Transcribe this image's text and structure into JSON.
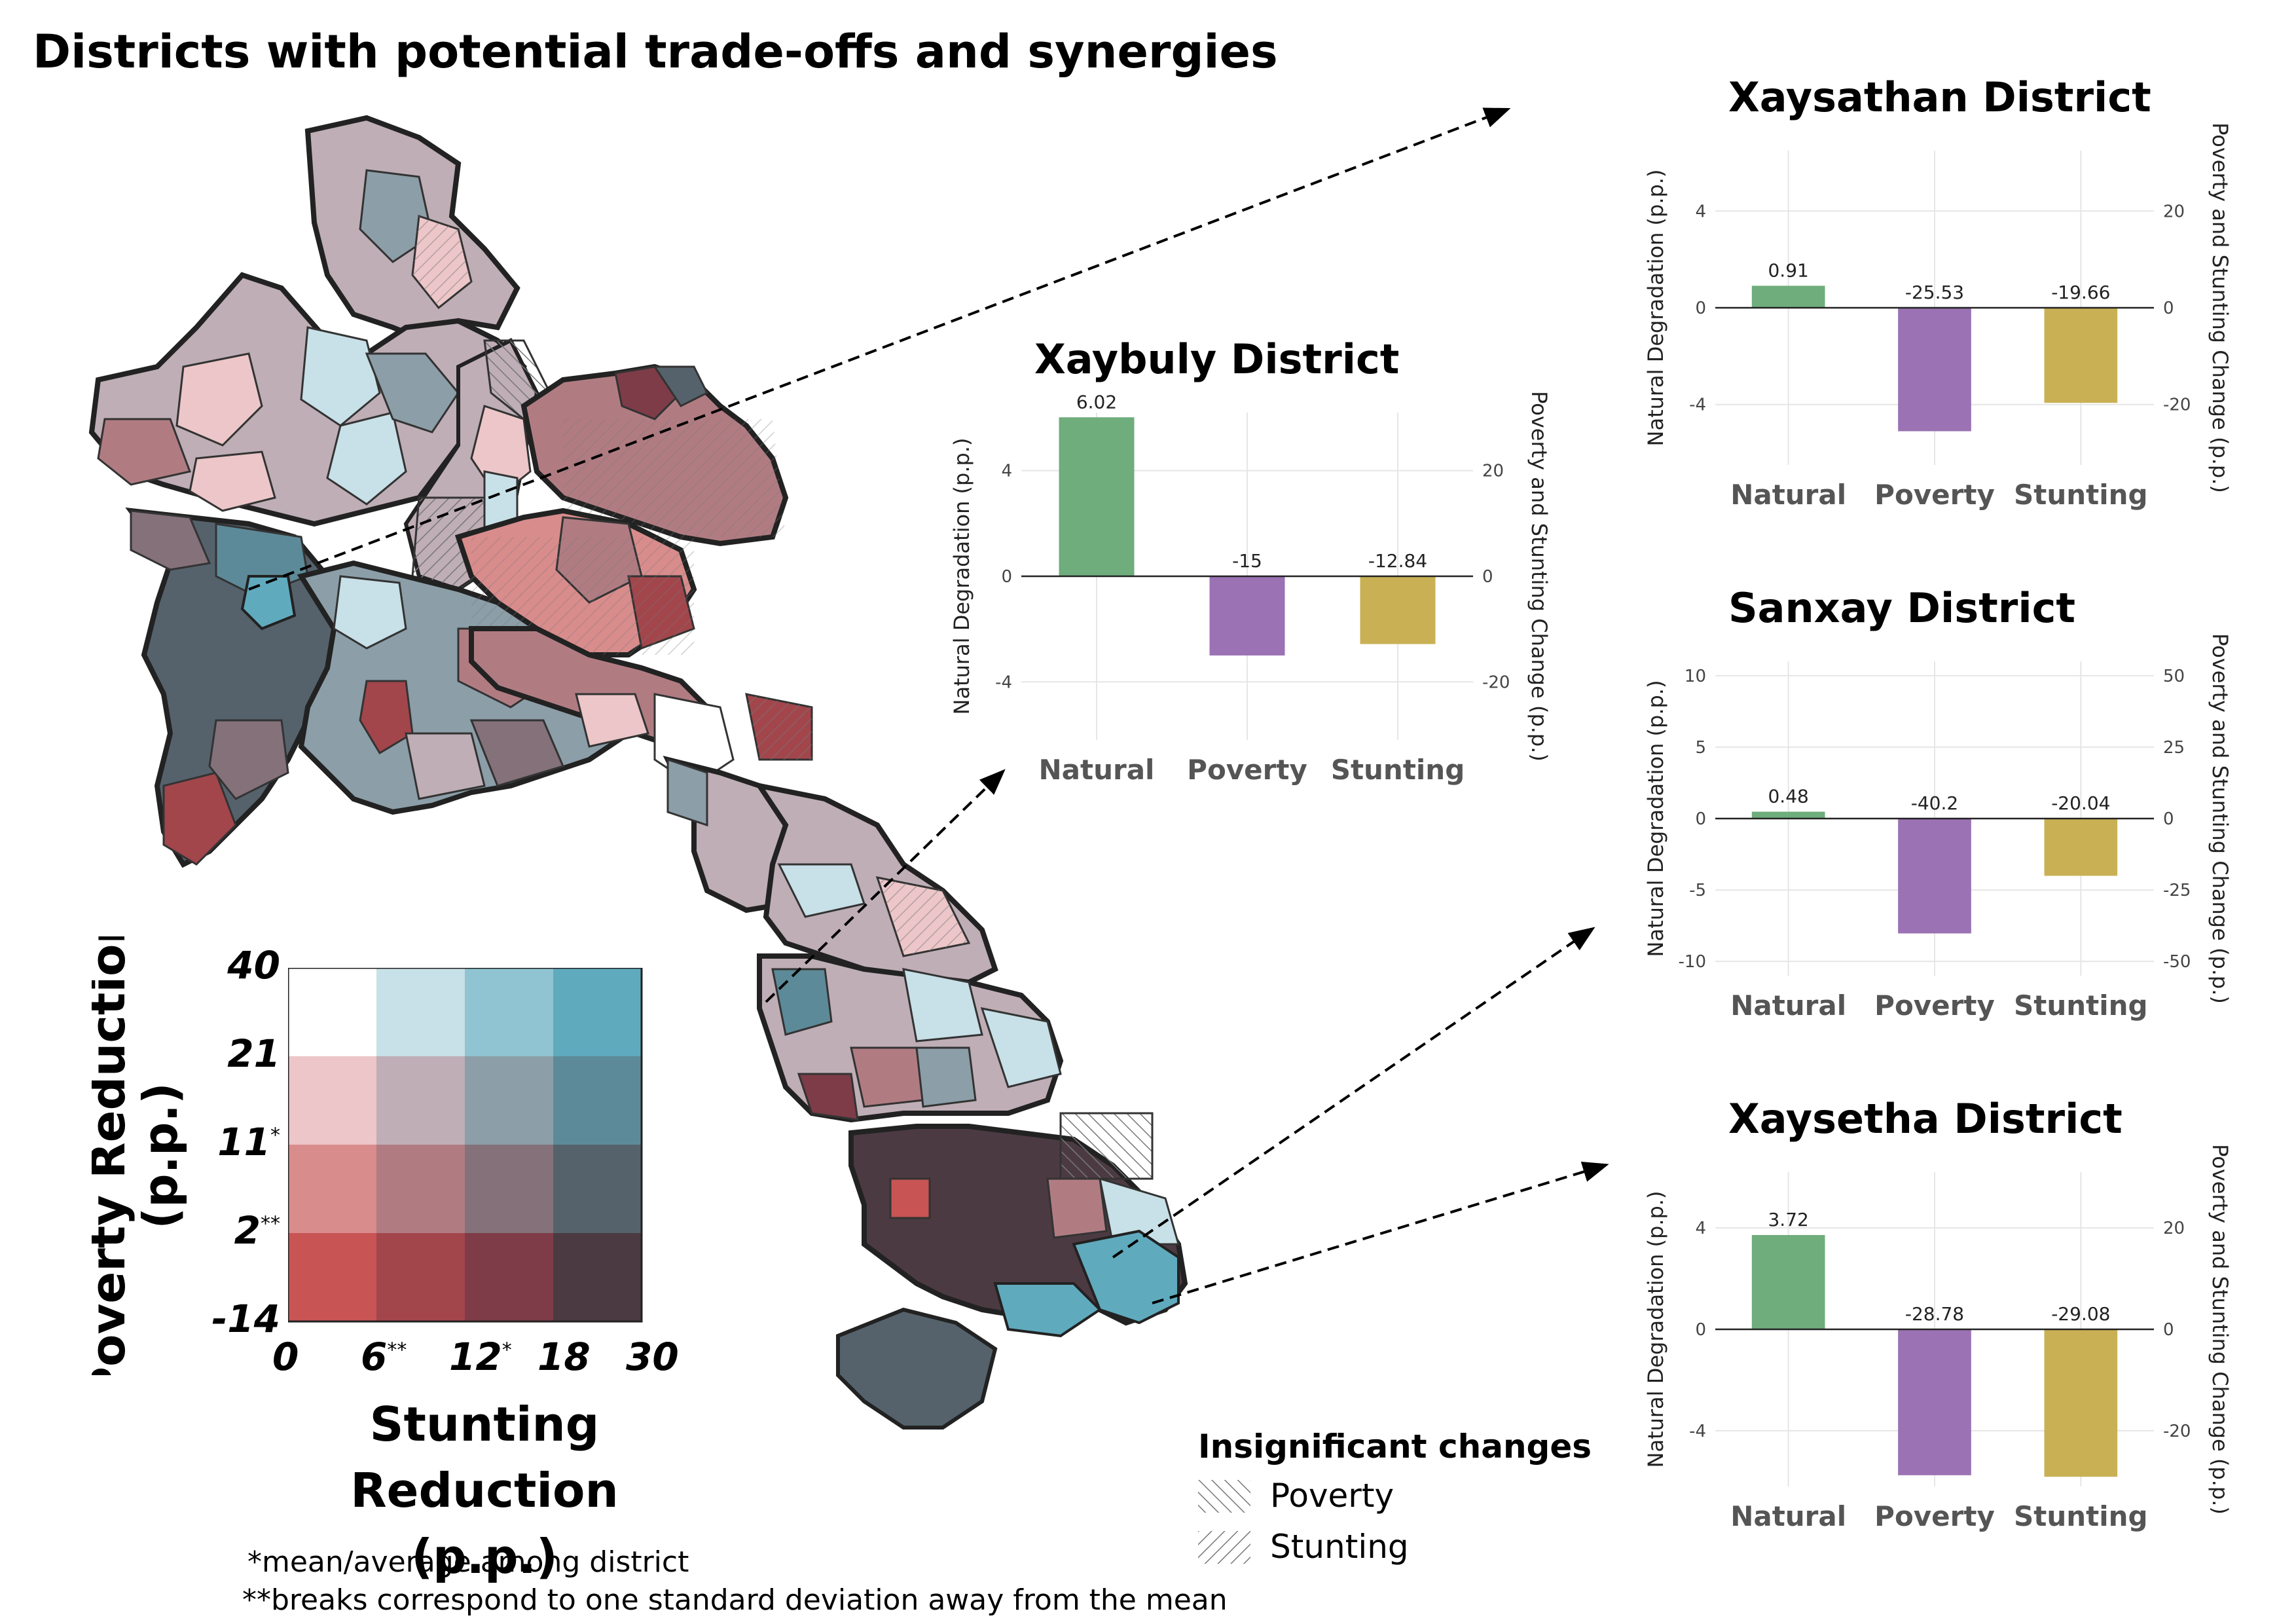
{
  "title": "Districts with potential trade-offs and synergies",
  "legend": {
    "y_label_line1": "Poverty Reduction",
    "y_label_line2": "(p.p.)",
    "x_label_line1": "Stunting Reduction",
    "x_label_line2": "(p.p.)",
    "y_ticks": [
      {
        "label": "40",
        "mark": ""
      },
      {
        "label": "21",
        "mark": ""
      },
      {
        "label": "11",
        "mark": "*"
      },
      {
        "label": "2",
        "mark": "**"
      },
      {
        "label": "-14",
        "mark": ""
      }
    ],
    "x_ticks": [
      {
        "label": "0",
        "mark": ""
      },
      {
        "label": "6",
        "mark": "**"
      },
      {
        "label": "12",
        "mark": "*"
      },
      {
        "label": "18",
        "mark": ""
      },
      {
        "label": "30",
        "mark": ""
      }
    ],
    "colors": [
      [
        "#ffffff",
        "#c8e0e8",
        "#90c4d2",
        "#60aabe"
      ],
      [
        "#ecc6c8",
        "#bfaeb6",
        "#8c9ea8",
        "#5d8a98"
      ],
      [
        "#d98c8c",
        "#b07c82",
        "#84717a",
        "#55626c"
      ],
      [
        "#c85454",
        "#a2464c",
        "#7e3c48",
        "#4c3a42"
      ]
    ]
  },
  "notes": {
    "mean": "*mean/average among district",
    "sd": "**breaks correspond to one standard deviation away from the mean"
  },
  "insignificant": {
    "title": "Insignificant changes",
    "items": [
      "Poverty",
      "Stunting"
    ]
  },
  "colors": {
    "natural": "#6fad7c",
    "poverty": "#9b72b3",
    "stunting": "#c9b054"
  },
  "chart_data": [
    {
      "type": "bar",
      "title": "Xaybuly District",
      "categories": [
        "Natural",
        "Poverty",
        "Stunting"
      ],
      "values": [
        6.02,
        -15,
        -12.84
      ],
      "value_labels": [
        "6.02",
        "-15",
        "-12.84"
      ],
      "ylabel": "Natural Degradation (p.p.)",
      "y2label": "Poverty and Stunting Change (p.p.)",
      "ylim": [
        -6.2,
        6.2
      ],
      "y2lim": [
        -31,
        31
      ],
      "yticks": [
        -4,
        0,
        4
      ],
      "y2ticks": [
        -20,
        0,
        20
      ]
    },
    {
      "type": "bar",
      "title": "Xaysathan District",
      "categories": [
        "Natural",
        "Poverty",
        "Stunting"
      ],
      "values": [
        0.91,
        -25.53,
        -19.66
      ],
      "value_labels": [
        "0.91",
        "-25.53",
        "-19.66"
      ],
      "ylabel": "Natural Degradation (p.p.)",
      "y2label": "Poverty and Stunting Change (p.p.)",
      "ylim": [
        -6.5,
        6.5
      ],
      "y2lim": [
        -32.5,
        32.5
      ],
      "yticks": [
        -4,
        0,
        4
      ],
      "y2ticks": [
        -20,
        0,
        20
      ]
    },
    {
      "type": "bar",
      "title": "Sanxay District",
      "categories": [
        "Natural",
        "Poverty",
        "Stunting"
      ],
      "values": [
        0.48,
        -40.2,
        -20.04
      ],
      "value_labels": [
        "0.48",
        "-40.2",
        "-20.04"
      ],
      "ylabel": "Natural Degradation (p.p.)",
      "y2label": "Poverty and Stunting Change (p.p.)",
      "ylim": [
        -11,
        11
      ],
      "y2lim": [
        -55,
        55
      ],
      "yticks": [
        -10,
        -5,
        0,
        5,
        10
      ],
      "y2ticks": [
        -50,
        -25,
        0,
        25,
        50
      ]
    },
    {
      "type": "bar",
      "title": "Xaysetha District",
      "categories": [
        "Natural",
        "Poverty",
        "Stunting"
      ],
      "values": [
        3.72,
        -28.78,
        -29.08
      ],
      "value_labels": [
        "3.72",
        "-28.78",
        "-29.08"
      ],
      "ylabel": "Natural Degradation (p.p.)",
      "y2label": "Poverty and Stunting Change (p.p.)",
      "ylim": [
        -6.2,
        6.2
      ],
      "y2lim": [
        -31,
        31
      ],
      "yticks": [
        -4,
        0,
        4
      ],
      "y2ticks": [
        -20,
        0,
        20
      ]
    }
  ]
}
